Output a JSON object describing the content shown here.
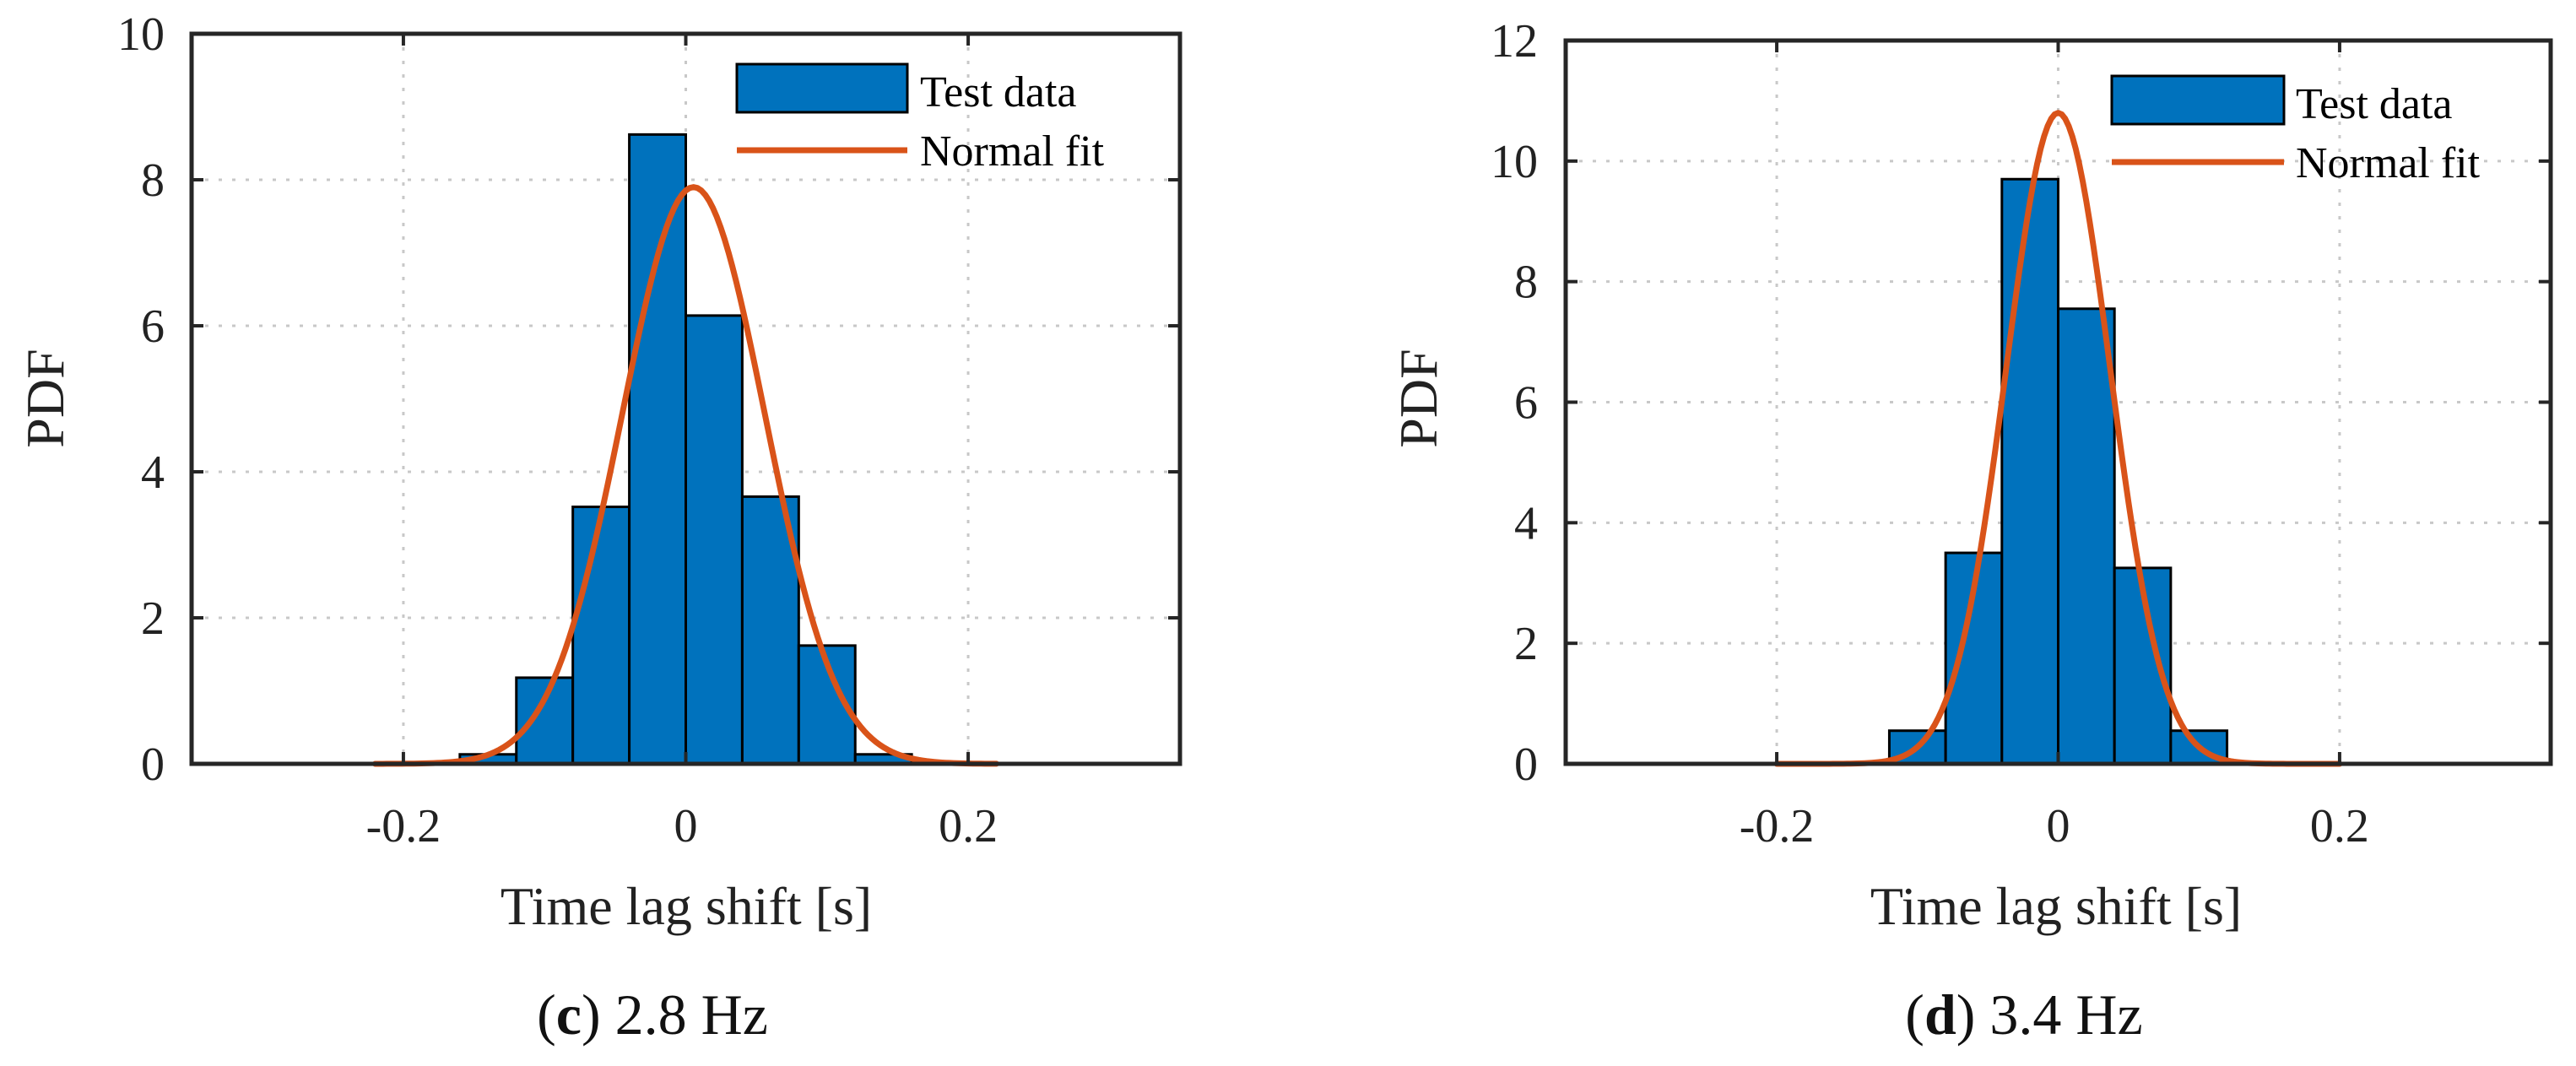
{
  "colors": {
    "bar_fill": "#0072BD",
    "fit_line": "#D95319",
    "axes": "#262626",
    "grid": "#c8c8c8"
  },
  "chart_data": [
    {
      "type": "bar",
      "subtype": "histogram-with-normal-fit",
      "caption_letter": "c",
      "caption_rest": " 2.8 Hz",
      "xlabel": "Time lag shift [s]",
      "ylabel": "PDF",
      "xlim": [
        -0.35,
        0.35
      ],
      "ylim": [
        0,
        10
      ],
      "xticks": [
        -0.2,
        0,
        0.2
      ],
      "xtick_labels": [
        "-0.2",
        "0",
        "0.2"
      ],
      "yticks": [
        0,
        2,
        4,
        6,
        8,
        10
      ],
      "ytick_labels": [
        "0",
        "2",
        "4",
        "6",
        "8",
        "10"
      ],
      "grid": true,
      "legend_location": "top-right",
      "series": [
        {
          "name": "Test data",
          "kind": "histogram",
          "bin_edges": [
            -0.16,
            -0.12,
            -0.08,
            -0.04,
            0.0,
            0.04,
            0.08,
            0.12,
            0.16
          ],
          "values": [
            0.13,
            1.18,
            3.52,
            8.62,
            6.14,
            3.66,
            1.62,
            0.13
          ]
        },
        {
          "name": "Normal fit",
          "kind": "line",
          "mean": 0.0055,
          "std": 0.0505,
          "peak": 7.9,
          "x_range": [
            -0.22,
            0.22
          ]
        }
      ]
    },
    {
      "type": "bar",
      "subtype": "histogram-with-normal-fit",
      "caption_letter": "d",
      "caption_rest": " 3.4 Hz",
      "xlabel": "Time lag shift [s]",
      "ylabel": "PDF",
      "xlim": [
        -0.35,
        0.35
      ],
      "ylim": [
        0,
        12
      ],
      "xticks": [
        -0.2,
        0,
        0.2
      ],
      "xtick_labels": [
        "-0.2",
        "0",
        "0.2"
      ],
      "yticks": [
        0,
        2,
        4,
        6,
        8,
        10,
        12
      ],
      "ytick_labels": [
        "0",
        "2",
        "4",
        "6",
        "8",
        "10",
        "12"
      ],
      "grid": true,
      "legend_location": "top-right",
      "series": [
        {
          "name": "Test data",
          "kind": "histogram",
          "bin_edges": [
            -0.12,
            -0.08,
            -0.04,
            0.0,
            0.04,
            0.08,
            0.12
          ],
          "values": [
            0.55,
            3.5,
            9.7,
            7.55,
            3.25,
            0.55
          ]
        },
        {
          "name": "Normal fit",
          "kind": "line",
          "mean": 0.0,
          "std": 0.037,
          "peak": 10.8,
          "x_range": [
            -0.2,
            0.2
          ]
        }
      ]
    }
  ]
}
